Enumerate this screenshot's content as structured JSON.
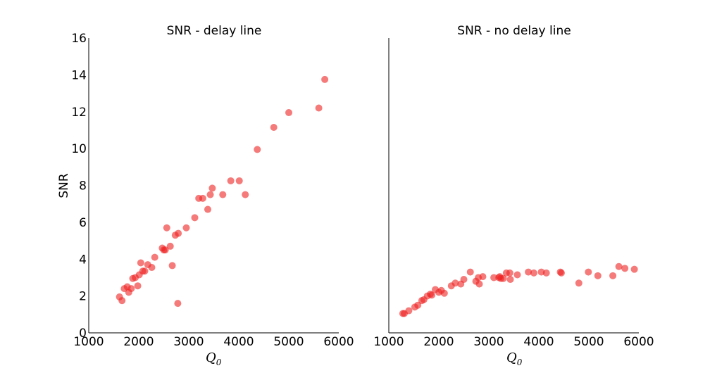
{
  "chart_data": [
    {
      "type": "scatter",
      "title": "SNR - delay line",
      "xlabel": "Q",
      "xlabel_sub": "0",
      "ylabel": "SNR",
      "xlim": [
        1000,
        6000
      ],
      "ylim": [
        0,
        16
      ],
      "xticks": [
        1000,
        2000,
        3000,
        4000,
        5000,
        6000
      ],
      "yticks": [
        0,
        2,
        4,
        6,
        8,
        10,
        12,
        14,
        16
      ],
      "show_yticks": true,
      "color": "#ee2222",
      "points": [
        [
          1615,
          1.95
        ],
        [
          1665,
          1.75
        ],
        [
          1710,
          2.4
        ],
        [
          1770,
          2.5
        ],
        [
          1800,
          2.2
        ],
        [
          1850,
          2.4
        ],
        [
          1880,
          2.95
        ],
        [
          1930,
          3.0
        ],
        [
          1980,
          2.55
        ],
        [
          2010,
          3.15
        ],
        [
          2040,
          3.8
        ],
        [
          2080,
          3.35
        ],
        [
          2120,
          3.35
        ],
        [
          2180,
          3.7
        ],
        [
          2260,
          3.55
        ],
        [
          2320,
          4.1
        ],
        [
          2470,
          4.6
        ],
        [
          2500,
          4.5
        ],
        [
          2530,
          4.5
        ],
        [
          2560,
          5.7
        ],
        [
          2630,
          4.7
        ],
        [
          2670,
          3.65
        ],
        [
          2730,
          5.3
        ],
        [
          2790,
          5.4
        ],
        [
          2780,
          1.6
        ],
        [
          2950,
          5.7
        ],
        [
          3120,
          6.25
        ],
        [
          3200,
          7.3
        ],
        [
          3280,
          7.3
        ],
        [
          3380,
          6.7
        ],
        [
          3430,
          7.5
        ],
        [
          3470,
          7.85
        ],
        [
          3680,
          7.5
        ],
        [
          3840,
          8.25
        ],
        [
          4010,
          8.25
        ],
        [
          4130,
          7.5
        ],
        [
          4370,
          9.95
        ],
        [
          4700,
          11.15
        ],
        [
          5000,
          11.95
        ],
        [
          5600,
          12.2
        ],
        [
          5720,
          13.75
        ]
      ]
    },
    {
      "type": "scatter",
      "title": "SNR - no delay line",
      "xlabel": "Q",
      "xlabel_sub": "0",
      "ylabel": "",
      "xlim": [
        1000,
        6000
      ],
      "ylim": [
        0,
        16
      ],
      "xticks": [
        1000,
        2000,
        3000,
        4000,
        5000,
        6000
      ],
      "yticks": [],
      "show_yticks": false,
      "color": "#ee2222",
      "points": [
        [
          1280,
          1.05
        ],
        [
          1310,
          1.05
        ],
        [
          1400,
          1.2
        ],
        [
          1520,
          1.4
        ],
        [
          1580,
          1.5
        ],
        [
          1660,
          1.75
        ],
        [
          1700,
          1.8
        ],
        [
          1770,
          2.0
        ],
        [
          1830,
          2.1
        ],
        [
          1860,
          2.05
        ],
        [
          1930,
          2.35
        ],
        [
          2000,
          2.2
        ],
        [
          2050,
          2.3
        ],
        [
          2110,
          2.15
        ],
        [
          2250,
          2.55
        ],
        [
          2330,
          2.7
        ],
        [
          2440,
          2.65
        ],
        [
          2500,
          2.9
        ],
        [
          2630,
          3.3
        ],
        [
          2740,
          2.8
        ],
        [
          2790,
          3.0
        ],
        [
          2810,
          2.65
        ],
        [
          2880,
          3.05
        ],
        [
          3100,
          3.0
        ],
        [
          3200,
          3.0
        ],
        [
          3220,
          3.05
        ],
        [
          3240,
          2.95
        ],
        [
          3290,
          2.95
        ],
        [
          3350,
          3.25
        ],
        [
          3420,
          3.25
        ],
        [
          3430,
          2.9
        ],
        [
          3570,
          3.15
        ],
        [
          3790,
          3.3
        ],
        [
          3900,
          3.25
        ],
        [
          4050,
          3.3
        ],
        [
          4150,
          3.25
        ],
        [
          4430,
          3.3
        ],
        [
          4450,
          3.25
        ],
        [
          4800,
          2.7
        ],
        [
          4990,
          3.3
        ],
        [
          5180,
          3.1
        ],
        [
          5480,
          3.1
        ],
        [
          5600,
          3.6
        ],
        [
          5720,
          3.5
        ],
        [
          5910,
          3.45
        ]
      ]
    }
  ]
}
